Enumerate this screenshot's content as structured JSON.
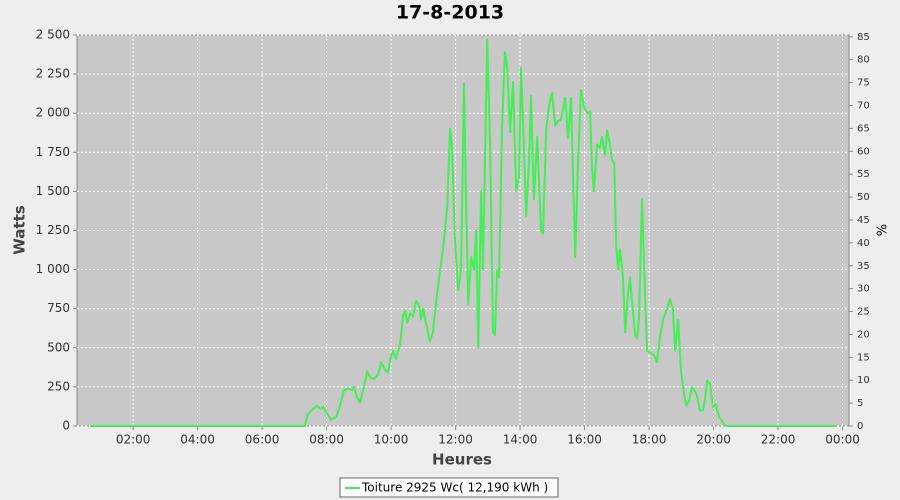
{
  "chart_data": {
    "type": "line",
    "title": "17-8-2013",
    "x_label": "Heures",
    "y_label": "Watts",
    "y2_label": "%",
    "grid": true,
    "legend": "bottom",
    "xlim": [
      0.26,
      24.2
    ],
    "xticks": [
      {
        "value": 2,
        "label": "02:00"
      },
      {
        "value": 4,
        "label": "04:00"
      },
      {
        "value": 6,
        "label": "06:00"
      },
      {
        "value": 8,
        "label": "08:00"
      },
      {
        "value": 10,
        "label": "10:00"
      },
      {
        "value": 12,
        "label": "12:00"
      },
      {
        "value": 14,
        "label": "14:00"
      },
      {
        "value": 16,
        "label": "16:00"
      },
      {
        "value": 18,
        "label": "18:00"
      },
      {
        "value": 20,
        "label": "20:00"
      },
      {
        "value": 22,
        "label": "22:00"
      },
      {
        "value": 24,
        "label": "00:00"
      }
    ],
    "ylim": [
      0,
      2500
    ],
    "yticks": [
      0,
      250,
      500,
      750,
      {
        "value": 1000,
        "label": "1 000"
      },
      {
        "value": 1250,
        "label": "1 250"
      },
      {
        "value": 1500,
        "label": "1 500"
      },
      {
        "value": 1750,
        "label": "1 750"
      },
      {
        "value": 2000,
        "label": "2 000"
      },
      {
        "value": 2250,
        "label": "2 250"
      },
      {
        "value": 2500,
        "label": "2 500"
      }
    ],
    "y2lim": [
      0,
      85.4
    ],
    "y2ticks": [
      0,
      5,
      10,
      15,
      20,
      25,
      30,
      35,
      40,
      45,
      50,
      55,
      60,
      65,
      70,
      75,
      80,
      85
    ],
    "x": [
      0.67,
      7.33,
      7.4,
      7.58,
      7.7,
      7.8,
      7.9,
      7.98,
      8.14,
      8.3,
      8.42,
      8.54,
      8.67,
      8.79,
      8.85,
      8.95,
      9.04,
      9.16,
      9.26,
      9.35,
      9.47,
      9.6,
      9.69,
      9.81,
      9.9,
      10.0,
      10.06,
      10.15,
      10.28,
      10.37,
      10.43,
      10.5,
      10.59,
      10.68,
      10.78,
      10.87,
      10.93,
      10.99,
      11.09,
      11.2,
      11.3,
      11.4,
      11.52,
      11.61,
      11.74,
      11.83,
      11.89,
      11.98,
      12.08,
      12.17,
      12.26,
      12.33,
      12.39,
      12.48,
      12.57,
      12.64,
      12.7,
      12.79,
      12.85,
      12.98,
      13.07,
      13.16,
      13.22,
      13.29,
      13.35,
      13.44,
      13.53,
      13.6,
      13.69,
      13.78,
      13.88,
      13.97,
      14.03,
      14.12,
      14.19,
      14.28,
      14.34,
      14.43,
      14.53,
      14.65,
      14.71,
      14.81,
      14.9,
      14.99,
      15.09,
      15.18,
      15.27,
      15.4,
      15.49,
      15.58,
      15.71,
      15.8,
      15.89,
      15.98,
      16.08,
      16.17,
      16.23,
      16.29,
      16.39,
      16.48,
      16.54,
      16.64,
      16.7,
      16.79,
      16.85,
      16.92,
      16.98,
      17.04,
      17.1,
      17.19,
      17.26,
      17.35,
      17.41,
      17.47,
      17.57,
      17.63,
      17.69,
      17.78,
      17.88,
      17.94,
      18.03,
      18.16,
      18.25,
      18.34,
      18.43,
      18.56,
      18.65,
      18.74,
      18.81,
      18.9,
      18.99,
      19.09,
      19.15,
      19.24,
      19.33,
      19.43,
      19.49,
      19.58,
      19.67,
      19.74,
      19.8,
      19.89,
      19.98,
      20.07,
      20.17,
      20.26,
      20.39,
      23.77
    ],
    "series": [
      {
        "name": "Toiture 2925 Wc( 12,190 kWh )",
        "color": "#44ee55",
        "values": [
          0,
          0,
          70,
          110,
          130,
          110,
          120,
          90,
          40,
          60,
          130,
          230,
          240,
          230,
          250,
          180,
          150,
          250,
          350,
          310,
          300,
          330,
          410,
          360,
          340,
          450,
          480,
          430,
          520,
          700,
          740,
          660,
          720,
          700,
          800,
          770,
          680,
          750,
          650,
          540,
          600,
          800,
          1000,
          1130,
          1400,
          1900,
          1780,
          1200,
          870,
          1000,
          2190,
          1400,
          780,
          1080,
          1000,
          1250,
          500,
          1500,
          1000,
          2470,
          1800,
          600,
          580,
          1000,
          950,
          1900,
          2390,
          2300,
          1880,
          2200,
          1500,
          1600,
          2290,
          1800,
          1340,
          1700,
          2110,
          1450,
          1850,
          1250,
          1230,
          1900,
          2050,
          2130,
          1920,
          1950,
          1960,
          2100,
          1840,
          2100,
          1080,
          1700,
          2150,
          2040,
          2000,
          2010,
          1650,
          1500,
          1800,
          1780,
          1850,
          1730,
          1890,
          1800,
          1700,
          1680,
          1150,
          1000,
          1130,
          960,
          600,
          850,
          950,
          800,
          580,
          560,
          700,
          1450,
          800,
          480,
          470,
          450,
          410,
          570,
          680,
          750,
          810,
          750,
          480,
          680,
          350,
          200,
          130,
          160,
          250,
          220,
          190,
          100,
          100,
          180,
          290,
          270,
          120,
          140,
          60,
          30,
          0,
          0
        ]
      }
    ]
  }
}
